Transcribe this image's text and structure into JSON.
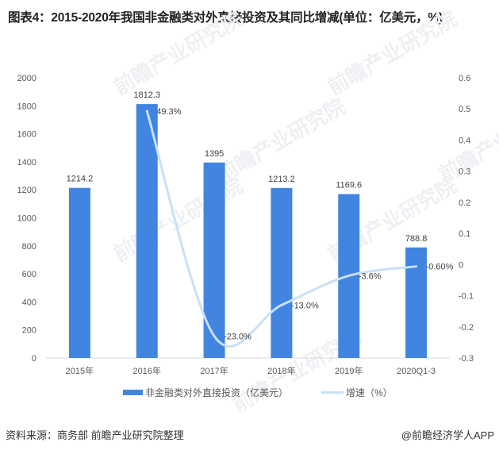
{
  "title": "图表4：2015-2020年我国非金融类对外直接投资及其同比增减(单位：亿美元，%)",
  "footer": {
    "source": "资料来源：商务部   前瞻产业研究院整理",
    "credit": "@前瞻经济学人APP"
  },
  "legend": {
    "bar_label": "非金融类对外直接投资（亿美元）",
    "line_label": "增速（%）"
  },
  "colors": {
    "bar": "#4185e0",
    "line": "#c9e0f9",
    "axis": "#d9d9d9"
  },
  "chart_data": {
    "type": "bar+line",
    "title": "图表4：2015-2020年我国非金融类对外直接投资及其同比增减(单位：亿美元，%)",
    "categories": [
      "2015年",
      "2016年",
      "2017年",
      "2018年",
      "2019年",
      "2020Q1-3"
    ],
    "series": [
      {
        "name": "非金融类对外直接投资（亿美元）",
        "type": "bar",
        "axis": "left",
        "values": [
          1214.2,
          1812.3,
          1395,
          1213.2,
          1169.6,
          788.8
        ],
        "labels": [
          "1214.2",
          "1812.3",
          "1395",
          "1213.2",
          "1169.6",
          "788.8"
        ]
      },
      {
        "name": "增速（%）",
        "type": "line",
        "axis": "right",
        "values": [
          null,
          0.493,
          -0.23,
          -0.13,
          -0.036,
          -0.006
        ],
        "labels": [
          "",
          "49.3%",
          "-23.0%",
          "-13.0%",
          "-3.6%",
          "-0.60%"
        ]
      }
    ],
    "left_axis": {
      "ylim": [
        0,
        2000
      ],
      "ticks": [
        "0",
        "200",
        "400",
        "600",
        "800",
        "1000",
        "1200",
        "1400",
        "1600",
        "1800",
        "2000"
      ]
    },
    "right_axis": {
      "ylim": [
        -0.3,
        0.6
      ],
      "ticks": [
        "-0.3",
        "-0.2",
        "-0.1",
        "0",
        "0.1",
        "0.2",
        "0.3",
        "0.4",
        "0.5",
        "0.6"
      ]
    },
    "grid": false,
    "legend_position": "bottom"
  }
}
